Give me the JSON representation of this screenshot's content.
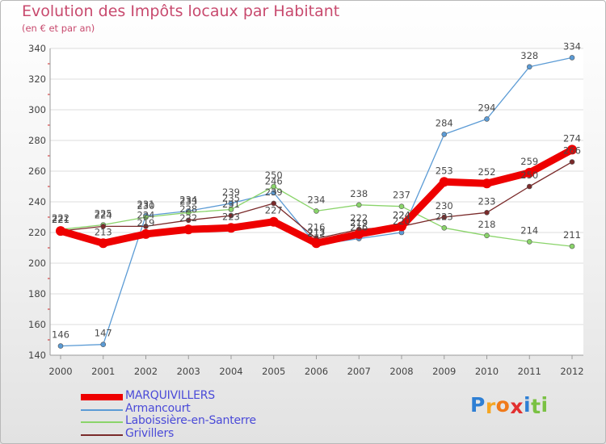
{
  "title": "Evolution des Impôts locaux par Habitant",
  "subtitle": "(en € et par an)",
  "logo": {
    "letters": [
      "P",
      "r",
      "o",
      "x",
      "i",
      "t",
      "i"
    ],
    "colors": [
      "#2e7fd4",
      "#f5a623",
      "#f07a1a",
      "#e23030",
      "#2e7fd4",
      "#7ac143",
      "#7ac143"
    ]
  },
  "chart_data": {
    "type": "line",
    "x": [
      "2000",
      "2001",
      "2002",
      "2003",
      "2004",
      "2005",
      "2006",
      "2007",
      "2008",
      "2009",
      "2010",
      "2011",
      "2012"
    ],
    "ylim": [
      140,
      340
    ],
    "yticks": [
      "140",
      "160",
      "180",
      "200",
      "220",
      "240",
      "260",
      "280",
      "300",
      "320",
      "340"
    ],
    "grid": "horizontal",
    "legend": "bottom-left",
    "series": [
      {
        "name": "MARQUIVILLERS",
        "color": "#ee0000",
        "values": [
          221,
          213,
          219,
          222,
          223,
          227,
          213,
          219,
          224,
          253,
          252,
          259,
          274
        ],
        "labels": [
          "221",
          "213",
          "219",
          "222",
          "223",
          "227",
          "213",
          "219",
          "224",
          "253",
          "252",
          "259",
          "274"
        ]
      },
      {
        "name": "Armancourt",
        "color": "#5b9bd5",
        "values": [
          146,
          147,
          231,
          234,
          239,
          246,
          212,
          216,
          220,
          284,
          294,
          328,
          334
        ],
        "labels": [
          "146",
          "147",
          "231",
          "234",
          "239",
          "246",
          "212",
          "216",
          "220",
          "284",
          "294",
          "328",
          "334"
        ]
      },
      {
        "name": "Laboissière-en-Santerre",
        "color": "#8ad46a",
        "values": [
          222,
          225,
          230,
          233,
          235,
          250,
          234,
          238,
          237,
          223,
          218,
          214,
          211
        ],
        "labels": [
          "222",
          "225",
          "230",
          "233",
          "235",
          "250",
          "234",
          "238",
          "237",
          "223",
          "218",
          "214",
          "211"
        ]
      },
      {
        "name": "Grivillers",
        "color": "#7a2a2a",
        "values": [
          221,
          224,
          224,
          228,
          231,
          239,
          216,
          222,
          224,
          230,
          233,
          250,
          266
        ],
        "labels": [
          "221",
          "224",
          "224",
          "228",
          "231",
          "239",
          "216",
          "222",
          "224",
          "230",
          "233",
          "250",
          "266"
        ]
      }
    ]
  }
}
